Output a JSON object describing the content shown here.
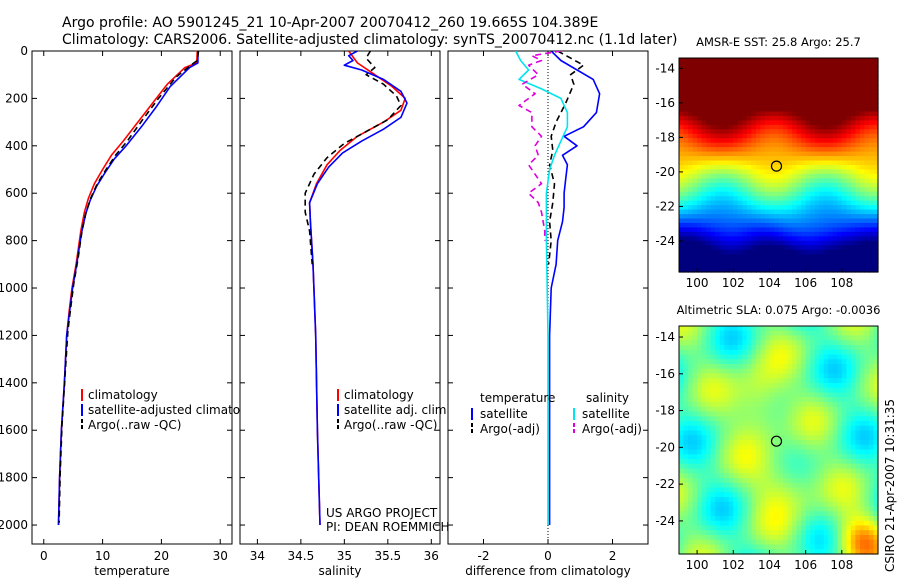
{
  "header": {
    "line1": "Argo profile: AO 5901245_21 10-Apr-2007 20070412_260 19.665S 104.389E",
    "line2": "Climatology: CARS2006. Satellite-adjusted climatology: synTS_20070412.nc (1.1d later)"
  },
  "side_label": "CSIRO 21-Apr-2007 10:31:35",
  "colors": {
    "clim": "#ff0000",
    "sat": "#0000ff",
    "argo": "#000000",
    "sal_sat": "#00e5ee",
    "sal_argo": "#dd00dd"
  },
  "chart_data": [
    {
      "type": "line",
      "id": "temp",
      "xlabel": "temperature",
      "xlim": [
        -2,
        32
      ],
      "ylim": [
        0,
        2080
      ],
      "y_reversed": true,
      "xticks": [
        0,
        10,
        20,
        30
      ],
      "yticks": [
        0,
        200,
        400,
        600,
        800,
        1000,
        1200,
        1400,
        1600,
        1800,
        2000
      ],
      "legend": [
        "climatology",
        "satellite-adjusted climatology",
        "Argo(..raw -QC)"
      ],
      "series": [
        {
          "name": "climatology",
          "color": "#ff0000",
          "dash": "",
          "width": 1.6,
          "points": [
            [
              26.1,
              0
            ],
            [
              26.0,
              50
            ],
            [
              24.0,
              70
            ],
            [
              21.0,
              140
            ],
            [
              18.5,
              220
            ],
            [
              16.0,
              300
            ],
            [
              13.5,
              380
            ],
            [
              11.5,
              440
            ],
            [
              10.0,
              500
            ],
            [
              8.6,
              560
            ],
            [
              7.6,
              620
            ],
            [
              6.9,
              680
            ],
            [
              6.3,
              760
            ],
            [
              5.5,
              900
            ],
            [
              4.8,
              1000
            ],
            [
              4.3,
              1100
            ],
            [
              3.9,
              1200
            ],
            [
              3.5,
              1400
            ],
            [
              3.0,
              1600
            ],
            [
              2.7,
              1800
            ],
            [
              2.5,
              2000
            ]
          ]
        },
        {
          "name": "satellite-adjusted climatology",
          "color": "#0000ff",
          "dash": "",
          "width": 1.6,
          "points": [
            [
              26.2,
              0
            ],
            [
              26.2,
              50
            ],
            [
              24.8,
              70
            ],
            [
              21.5,
              150
            ],
            [
              19.0,
              240
            ],
            [
              16.6,
              320
            ],
            [
              14.0,
              400
            ],
            [
              12.0,
              455
            ],
            [
              10.5,
              510
            ],
            [
              9.0,
              570
            ],
            [
              7.9,
              630
            ],
            [
              7.1,
              690
            ],
            [
              6.4,
              770
            ],
            [
              5.6,
              900
            ],
            [
              4.9,
              1000
            ],
            [
              4.4,
              1100
            ],
            [
              3.9,
              1200
            ],
            [
              3.5,
              1400
            ],
            [
              3.0,
              1600
            ],
            [
              2.7,
              1800
            ],
            [
              2.5,
              2000
            ]
          ]
        },
        {
          "name": "Argo(..raw -QC)",
          "color": "#000000",
          "dash": "6,4",
          "width": 1.6,
          "points": [
            [
              26.3,
              0
            ],
            [
              26.1,
              40
            ],
            [
              25.0,
              60
            ],
            [
              22.5,
              110
            ],
            [
              19.5,
              200
            ],
            [
              16.8,
              290
            ],
            [
              14.2,
              380
            ],
            [
              12.2,
              440
            ],
            [
              10.6,
              500
            ],
            [
              9.1,
              560
            ],
            [
              8.0,
              620
            ],
            [
              7.2,
              680
            ],
            [
              6.5,
              760
            ],
            [
              5.8,
              880
            ],
            [
              5.1,
              980
            ],
            [
              4.6,
              1080
            ],
            [
              4.1,
              1180
            ],
            [
              3.6,
              1380
            ],
            [
              3.1,
              1580
            ],
            [
              2.8,
              1780
            ],
            [
              2.6,
              1990
            ]
          ]
        }
      ]
    },
    {
      "type": "line",
      "id": "sal",
      "xlabel": "salinity",
      "xlim": [
        33.8,
        36.1
      ],
      "ylim": [
        0,
        2080
      ],
      "y_reversed": true,
      "xticks": [
        34,
        34.5,
        35,
        35.5,
        36
      ],
      "legend": [
        "climatology",
        "satellite adj. clim.",
        "Argo(..raw -QC)"
      ],
      "annotation": [
        "US ARGO PROJECT",
        "PI: DEAN ROEMMICH"
      ],
      "series": [
        {
          "name": "climatology",
          "color": "#ff0000",
          "dash": "",
          "width": 1.6,
          "points": [
            [
              35.05,
              0
            ],
            [
              35.15,
              50
            ],
            [
              35.35,
              100
            ],
            [
              35.55,
              150
            ],
            [
              35.7,
              200
            ],
            [
              35.65,
              250
            ],
            [
              35.45,
              300
            ],
            [
              35.15,
              360
            ],
            [
              34.95,
              420
            ],
            [
              34.8,
              480
            ],
            [
              34.68,
              560
            ],
            [
              34.6,
              640
            ],
            [
              34.61,
              720
            ],
            [
              34.64,
              900
            ],
            [
              34.67,
              1200
            ],
            [
              34.69,
              1600
            ],
            [
              34.72,
              2000
            ]
          ]
        },
        {
          "name": "satellite adj. clim.",
          "color": "#0000ff",
          "dash": "",
          "width": 1.6,
          "points": [
            [
              35.15,
              0
            ],
            [
              35.05,
              20
            ],
            [
              35.1,
              40
            ],
            [
              35.0,
              60
            ],
            [
              35.2,
              80
            ],
            [
              35.45,
              120
            ],
            [
              35.65,
              170
            ],
            [
              35.72,
              220
            ],
            [
              35.65,
              280
            ],
            [
              35.45,
              330
            ],
            [
              35.2,
              380
            ],
            [
              34.98,
              430
            ],
            [
              34.82,
              490
            ],
            [
              34.69,
              560
            ],
            [
              34.6,
              640
            ],
            [
              34.61,
              720
            ],
            [
              34.64,
              900
            ],
            [
              34.67,
              1200
            ],
            [
              34.69,
              1600
            ],
            [
              34.72,
              2000
            ]
          ]
        },
        {
          "name": "Argo(..raw -QC)",
          "color": "#000000",
          "dash": "6,4",
          "width": 1.6,
          "points": [
            [
              35.3,
              0
            ],
            [
              35.25,
              30
            ],
            [
              35.35,
              70
            ],
            [
              35.25,
              100
            ],
            [
              35.45,
              140
            ],
            [
              35.6,
              190
            ],
            [
              35.65,
              230
            ],
            [
              35.5,
              290
            ],
            [
              35.25,
              340
            ],
            [
              35.0,
              390
            ],
            [
              34.8,
              450
            ],
            [
              34.65,
              520
            ],
            [
              34.55,
              600
            ],
            [
              34.55,
              680
            ],
            [
              34.6,
              760
            ],
            [
              34.63,
              900
            ]
          ]
        }
      ]
    },
    {
      "type": "line",
      "id": "diff",
      "xlabel": "difference from climatology",
      "xlim": [
        -3.1,
        3.1
      ],
      "ylim": [
        0,
        2080
      ],
      "y_reversed": true,
      "xticks": [
        -2,
        0,
        2
      ],
      "legend_temperature_title": "temperature",
      "legend_salinity_title": "salinity",
      "legend_temperature": [
        "satellite",
        "Argo(-adj)"
      ],
      "legend_salinity": [
        "satellite",
        "Argo(-adj)"
      ],
      "series": [
        {
          "name": "temperature satellite",
          "color": "#0000ff",
          "dash": "",
          "width": 1.6,
          "points": [
            [
              0.1,
              0
            ],
            [
              0.4,
              40
            ],
            [
              1.4,
              120
            ],
            [
              1.6,
              180
            ],
            [
              1.5,
              260
            ],
            [
              1.1,
              320
            ],
            [
              0.5,
              360
            ],
            [
              0.9,
              400
            ],
            [
              0.45,
              440
            ],
            [
              0.6,
              480
            ],
            [
              0.55,
              540
            ],
            [
              0.5,
              600
            ],
            [
              0.5,
              660
            ],
            [
              0.45,
              720
            ],
            [
              0.3,
              800
            ],
            [
              0.25,
              900
            ],
            [
              0.1,
              1000
            ],
            [
              0.05,
              1200
            ],
            [
              0.05,
              1600
            ],
            [
              0.05,
              2000
            ]
          ]
        },
        {
          "name": "temperature Argo(-adj)",
          "color": "#000000",
          "dash": "6,4",
          "width": 1.6,
          "points": [
            [
              0.3,
              0
            ],
            [
              1.1,
              60
            ],
            [
              0.7,
              100
            ],
            [
              0.8,
              140
            ],
            [
              0.55,
              220
            ],
            [
              0.25,
              300
            ],
            [
              0.1,
              360
            ],
            [
              0.15,
              420
            ],
            [
              0.05,
              480
            ],
            [
              0.2,
              560
            ],
            [
              0.15,
              640
            ],
            [
              0.05,
              720
            ],
            [
              0.1,
              800
            ],
            [
              0.02,
              900
            ]
          ]
        },
        {
          "name": "salinity satellite",
          "color": "#00e5ee",
          "dash": "",
          "width": 1.6,
          "points": [
            [
              -1.0,
              0
            ],
            [
              -0.85,
              40
            ],
            [
              -0.6,
              80
            ],
            [
              -0.9,
              120
            ],
            [
              -0.2,
              160
            ],
            [
              0.4,
              200
            ],
            [
              0.6,
              260
            ],
            [
              0.6,
              320
            ],
            [
              0.4,
              380
            ],
            [
              0.2,
              440
            ],
            [
              0.05,
              500
            ],
            [
              -0.05,
              600
            ],
            [
              -0.05,
              800
            ],
            [
              0.0,
              1200
            ],
            [
              0.0,
              1600
            ],
            [
              0.0,
              2000
            ]
          ]
        },
        {
          "name": "salinity Argo(-adj)",
          "color": "#dd00dd",
          "dash": "6,4",
          "width": 1.6,
          "points": [
            [
              0.4,
              0
            ],
            [
              -0.5,
              20
            ],
            [
              -0.2,
              40
            ],
            [
              -0.6,
              60
            ],
            [
              -0.3,
              100
            ],
            [
              -0.8,
              140
            ],
            [
              -0.4,
              180
            ],
            [
              -0.9,
              230
            ],
            [
              -0.5,
              260
            ],
            [
              -0.5,
              320
            ],
            [
              -0.2,
              360
            ],
            [
              -0.4,
              400
            ],
            [
              -0.3,
              440
            ],
            [
              -0.6,
              480
            ],
            [
              -0.4,
              520
            ],
            [
              -0.2,
              560
            ],
            [
              -0.6,
              600
            ],
            [
              -0.3,
              640
            ],
            [
              -0.2,
              680
            ],
            [
              -0.1,
              760
            ],
            [
              -0.1,
              800
            ]
          ]
        }
      ]
    },
    {
      "type": "heatmap",
      "id": "sst",
      "title": "AMSR-E SST: 25.8 Argo: 25.7",
      "xlim": [
        99,
        110
      ],
      "ylim": [
        -25.8,
        -13.4
      ],
      "xticks": [
        100,
        102,
        104,
        106,
        108
      ],
      "yticks": [
        -14,
        -16,
        -18,
        -20,
        -22,
        -24
      ],
      "marker": [
        104.389,
        -19.665
      ]
    },
    {
      "type": "heatmap",
      "id": "sla",
      "title": "Altimetric SLA: 0.075 Argo: -0.0036",
      "xlim": [
        99,
        110
      ],
      "ylim": [
        -25.8,
        -13.4
      ],
      "xticks": [
        100,
        102,
        104,
        106,
        108
      ],
      "yticks": [
        -14,
        -16,
        -18,
        -20,
        -22,
        -24
      ],
      "marker": [
        104.389,
        -19.665
      ]
    }
  ]
}
